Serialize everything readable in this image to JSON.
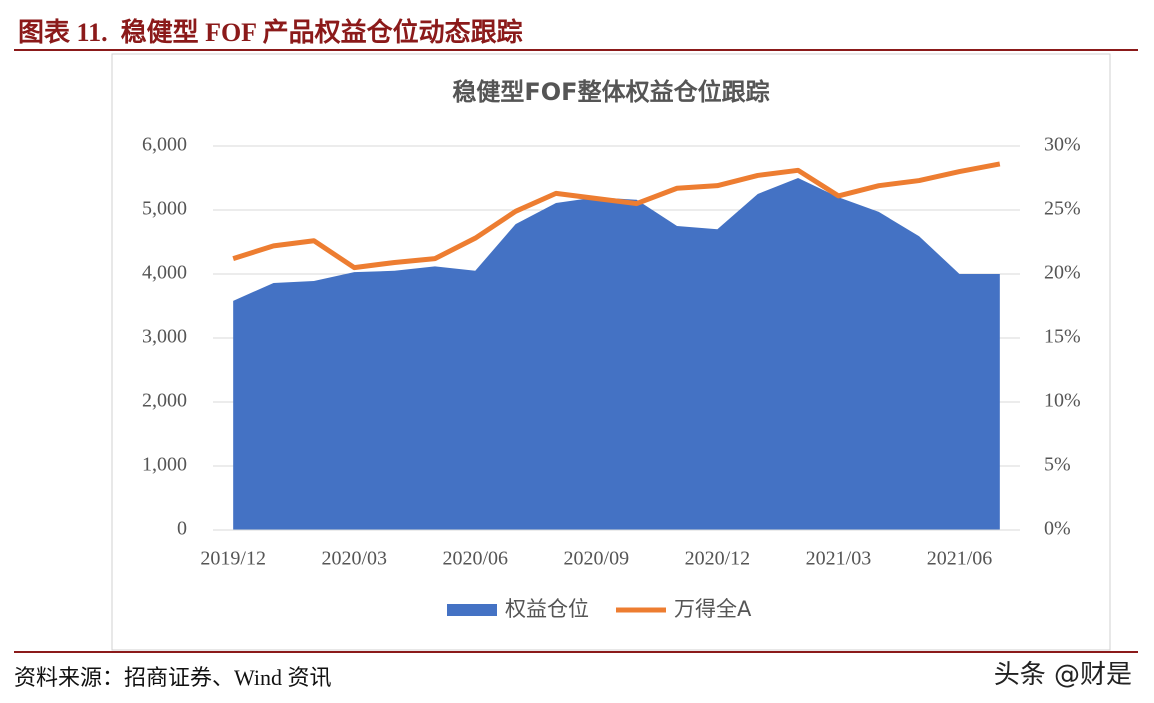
{
  "header": {
    "title": "图表 11.  稳健型 FOF 产品权益仓位动态跟踪"
  },
  "chart_data": {
    "type": "combo",
    "title": "稳健型FOF整体权益仓位跟踪",
    "categories": [
      "2019/12",
      null,
      null,
      "2020/03",
      null,
      null,
      "2020/06",
      null,
      null,
      "2020/09",
      null,
      null,
      "2020/12",
      null,
      null,
      "2021/03",
      null,
      null,
      "2021/06",
      null
    ],
    "series": [
      {
        "name": "权益仓位",
        "type": "area",
        "color": "#4472c4",
        "values": [
          3580,
          3860,
          3890,
          4030,
          4050,
          4120,
          4050,
          4780,
          5110,
          5200,
          5160,
          4750,
          4700,
          5250,
          5500,
          5200,
          4970,
          4590,
          4000,
          4000
        ]
      },
      {
        "name": "万得全A",
        "type": "line",
        "axis": "y2",
        "color": "#ed7d31",
        "values": [
          21.2,
          22.2,
          22.6,
          20.5,
          20.9,
          21.2,
          22.8,
          24.9,
          26.3,
          25.9,
          25.5,
          26.7,
          26.9,
          27.7,
          28.1,
          26.1,
          26.9,
          27.3,
          28.0,
          28.6
        ]
      }
    ],
    "ylim": [
      0,
      6000
    ],
    "yticks": [
      0,
      {
        "value": 1000,
        "label": "1,000"
      },
      {
        "value": 2000,
        "label": "2,000"
      },
      {
        "value": 3000,
        "label": "3,000"
      },
      {
        "value": 4000,
        "label": "4,000"
      },
      {
        "value": 5000,
        "label": "5,000"
      },
      {
        "value": 6000,
        "label": "6,000"
      }
    ],
    "y2lim": [
      0,
      30
    ],
    "y2ticks": [
      {
        "value": 0,
        "label": "0%"
      },
      {
        "value": 5,
        "label": "5%"
      },
      {
        "value": 10,
        "label": "10%"
      },
      {
        "value": 15,
        "label": "15%"
      },
      {
        "value": 20,
        "label": "20%"
      },
      {
        "value": 25,
        "label": "25%"
      },
      {
        "value": 30,
        "label": "30%"
      }
    ],
    "grid": true,
    "legend": "bottom"
  },
  "footer": {
    "source": "资料来源：招商证券、Wind 资讯",
    "watermark": "头条 @财是"
  }
}
